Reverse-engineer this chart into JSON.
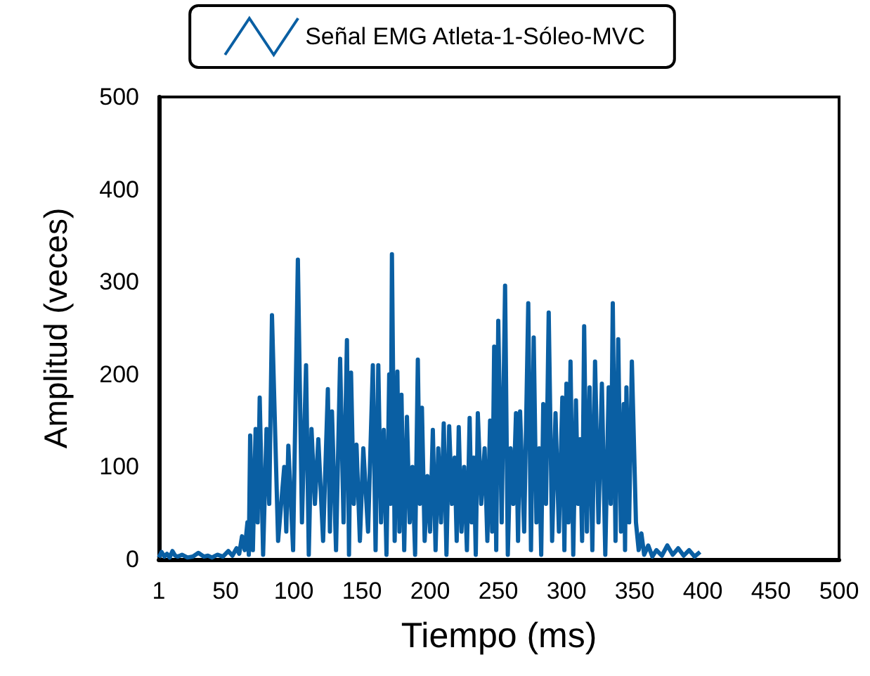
{
  "chart_data": {
    "type": "line",
    "xlabel": "Tiempo (ms)",
    "ylabel": "Amplitud (veces)",
    "xlim": [
      1,
      500
    ],
    "xticks": [
      1,
      50,
      100,
      150,
      200,
      250,
      300,
      350,
      400,
      450,
      500
    ],
    "ylim": [
      0,
      500
    ],
    "yticks": [
      0,
      100,
      200,
      300,
      400,
      500
    ],
    "grid": false,
    "legend": "top",
    "marker": "none",
    "line_style": "solid",
    "series": [
      {
        "name": "Señal EMG Atleta-1-Sóleo-MVC",
        "color": "#0a5fa3",
        "x": [
          1,
          3,
          5,
          7,
          9,
          11,
          13,
          15,
          18,
          22,
          26,
          30,
          34,
          37,
          40,
          44,
          48,
          52,
          55,
          58,
          60,
          62,
          64,
          66,
          67,
          68,
          70,
          72,
          73.5,
          75,
          77.5,
          80,
          82,
          84,
          88.5,
          93,
          94.5,
          96,
          99.5,
          103,
          106,
          109,
          111,
          113,
          115.5,
          118,
          121.5,
          125,
          126.5,
          128,
          131,
          134,
          136.5,
          139,
          140.5,
          142,
          144,
          146,
          148.5,
          151,
          154.5,
          158,
          160,
          162,
          164,
          166,
          168,
          170,
          171,
          172,
          174,
          176,
          177.5,
          179,
          181,
          183,
          185,
          187,
          189,
          191,
          192.5,
          194,
          196,
          198,
          200,
          202,
          204,
          206,
          208,
          210,
          212,
          214,
          216,
          218,
          219.5,
          221,
          223,
          225,
          227,
          229,
          230.5,
          232,
          233.5,
          235,
          237.5,
          240,
          242,
          244,
          245.5,
          247,
          248.5,
          250,
          252.5,
          255,
          257,
          259,
          261,
          263,
          264.5,
          266,
          269,
          272,
          274,
          276,
          278,
          280,
          281.5,
          283,
          285,
          287,
          289.5,
          292,
          294.5,
          297,
          298.5,
          300,
          301.5,
          303,
          305,
          307,
          308.5,
          310,
          311.5,
          313,
          315,
          317,
          319,
          321,
          323.5,
          326,
          328.5,
          331,
          332.5,
          334,
          336,
          338,
          340,
          342,
          343,
          344,
          346,
          348,
          351,
          353,
          355,
          357,
          360,
          363,
          366,
          370,
          374,
          378,
          382,
          386,
          390,
          394,
          398
        ],
        "values": [
          2,
          8,
          3,
          6,
          2,
          9,
          4,
          3,
          5,
          2,
          3,
          7,
          3,
          4,
          2,
          5,
          3,
          9,
          4,
          12,
          6,
          25,
          10,
          40,
          5,
          134,
          10,
          141,
          40,
          175,
          5,
          141,
          60,
          264,
          20,
          100,
          30,
          123,
          10,
          324,
          40,
          210,
          5,
          141,
          60,
          130,
          20,
          184,
          30,
          160,
          10,
          217,
          40,
          237,
          5,
          202,
          60,
          124,
          20,
          120,
          30,
          210,
          10,
          210,
          40,
          140,
          5,
          200,
          60,
          330,
          20,
          203,
          30,
          178,
          10,
          154,
          40,
          100,
          5,
          216,
          60,
          164,
          20,
          90,
          30,
          140,
          10,
          120,
          40,
          147,
          5,
          144,
          60,
          110,
          20,
          143,
          30,
          100,
          10,
          153,
          40,
          110,
          5,
          158,
          60,
          120,
          20,
          150,
          30,
          230,
          10,
          258,
          40,
          296,
          5,
          120,
          60,
          158,
          20,
          160,
          30,
          277,
          10,
          240,
          40,
          120,
          5,
          168,
          60,
          267,
          20,
          158,
          30,
          175,
          10,
          190,
          40,
          214,
          5,
          172,
          60,
          130,
          20,
          252,
          30,
          186,
          10,
          214,
          40,
          190,
          5,
          186,
          60,
          277,
          20,
          238,
          30,
          168,
          10,
          186,
          40,
          214,
          40,
          10,
          28,
          5,
          15,
          3,
          10,
          4,
          15,
          5,
          12,
          4,
          10,
          3,
          8
        ]
      }
    ]
  }
}
